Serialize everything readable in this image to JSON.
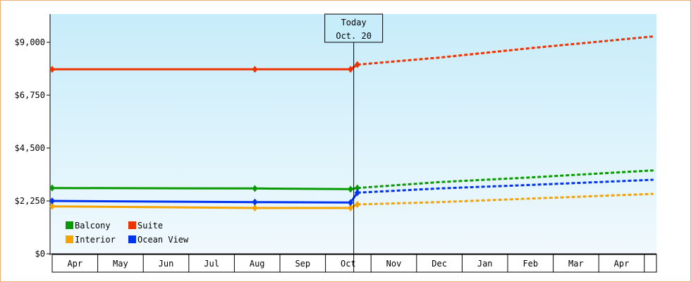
{
  "chart_data": {
    "type": "line",
    "y_ticks": [
      0,
      2250,
      4500,
      6750,
      9000
    ],
    "y_tick_labels": [
      "$0",
      "$2,250",
      "$4,500",
      "$6,750",
      "$9,000"
    ],
    "ylim": [
      0,
      10200
    ],
    "x_months": [
      "Apr",
      "May",
      "Jun",
      "Jul",
      "Aug",
      "Sep",
      "Oct",
      "Nov",
      "Dec",
      "Jan",
      "Feb",
      "Mar",
      "Apr"
    ],
    "x_range_months": [
      0,
      13.2
    ],
    "today_marker": {
      "line1": "Today",
      "line2": "Oct. 20",
      "x_month": 6.62
    },
    "grid": false,
    "legend_position": "bottom-left",
    "series": [
      {
        "name": "Balcony",
        "color": "#0a9900",
        "points": [
          [
            0,
            2800
          ],
          [
            4.45,
            2780
          ],
          [
            6.55,
            2750
          ],
          [
            6.7,
            2800
          ]
        ],
        "forecast": [
          [
            6.7,
            2800
          ],
          [
            8.5,
            3050
          ],
          [
            10.5,
            3250
          ],
          [
            13.2,
            3550
          ]
        ]
      },
      {
        "name": "Suite",
        "color": "#ee3300",
        "points": [
          [
            0,
            7850
          ],
          [
            4.45,
            7850
          ],
          [
            6.55,
            7850
          ],
          [
            6.7,
            8050
          ]
        ],
        "forecast": [
          [
            6.7,
            8050
          ],
          [
            8.5,
            8350
          ],
          [
            10.5,
            8750
          ],
          [
            13.2,
            9250
          ]
        ]
      },
      {
        "name": "Interior",
        "color": "#f4a300",
        "points": [
          [
            0,
            2020
          ],
          [
            4.45,
            1950
          ],
          [
            6.55,
            1950
          ],
          [
            6.7,
            2100
          ]
        ],
        "forecast": [
          [
            6.7,
            2100
          ],
          [
            8.5,
            2200
          ],
          [
            10.5,
            2350
          ],
          [
            13.2,
            2550
          ]
        ]
      },
      {
        "name": "Ocean View",
        "color": "#0033ee",
        "points": [
          [
            0,
            2250
          ],
          [
            4.45,
            2200
          ],
          [
            6.55,
            2180
          ],
          [
            6.7,
            2600
          ]
        ],
        "forecast": [
          [
            6.7,
            2600
          ],
          [
            8.5,
            2780
          ],
          [
            10.5,
            2930
          ],
          [
            13.2,
            3150
          ]
        ]
      }
    ]
  },
  "legend_order": [
    "Balcony",
    "Suite",
    "Interior",
    "Ocean View"
  ]
}
